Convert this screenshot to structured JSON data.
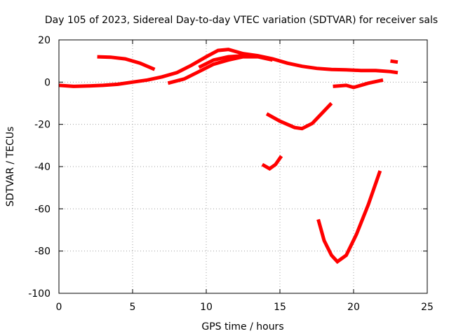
{
  "chart_data": {
    "type": "scatter",
    "title": "Day 105 of 2023, Sidereal Day-to-day VTEC variation (SDTVAR) for receiver sals",
    "xlabel": "GPS time / hours",
    "ylabel": "SDTVAR / TECUs",
    "xlim": [
      0,
      25
    ],
    "ylim": [
      -100,
      20
    ],
    "xticks": [
      "0",
      "5",
      "10",
      "15",
      "20",
      "25"
    ],
    "yticks": [
      "20",
      "0",
      "-20",
      "-40",
      "-60",
      "-80",
      "-100"
    ],
    "grid": true,
    "series": [
      {
        "points": [
          [
            0,
            -1.5
          ],
          [
            1,
            -2
          ],
          [
            2,
            -1.8
          ],
          [
            3,
            -1.5
          ],
          [
            4,
            -1
          ],
          [
            5,
            0
          ],
          [
            6,
            1
          ],
          [
            7,
            2.5
          ],
          [
            8,
            4.5
          ],
          [
            9,
            8
          ],
          [
            10,
            12
          ],
          [
            10.8,
            15
          ],
          [
            11.5,
            15.5
          ],
          [
            12.5,
            13.5
          ],
          [
            13.5,
            12.5
          ],
          [
            14.5,
            11
          ],
          [
            15.5,
            9
          ],
          [
            16.5,
            7.5
          ],
          [
            17.5,
            6.5
          ],
          [
            18.5,
            6
          ],
          [
            19.5,
            5.8
          ],
          [
            20.5,
            5.5
          ],
          [
            21.5,
            5.5
          ],
          [
            22.5,
            5
          ],
          [
            23,
            4.5
          ]
        ]
      },
      {
        "points": [
          [
            2.6,
            12
          ],
          [
            3.5,
            11.8
          ],
          [
            4.5,
            11
          ],
          [
            5.5,
            9
          ],
          [
            6.5,
            6
          ]
        ]
      },
      {
        "points": [
          [
            7.4,
            -0.5
          ],
          [
            8.5,
            1.5
          ],
          [
            9.5,
            5
          ],
          [
            10.5,
            8.5
          ],
          [
            11.5,
            10.5
          ],
          [
            12.5,
            12
          ],
          [
            13.5,
            12
          ],
          [
            14.5,
            10.5
          ]
        ]
      },
      {
        "points": [
          [
            9.5,
            7
          ],
          [
            10.5,
            10.5
          ],
          [
            11.5,
            12
          ],
          [
            12.5,
            12.5
          ],
          [
            13.5,
            12.5
          ]
        ]
      },
      {
        "points": [
          [
            18.6,
            -2
          ],
          [
            19.5,
            -1.5
          ],
          [
            20,
            -2.5
          ],
          [
            21,
            -0.5
          ],
          [
            22,
            1
          ]
        ]
      },
      {
        "points": [
          [
            22.5,
            10
          ],
          [
            23,
            9.5
          ]
        ]
      },
      {
        "points": [
          [
            14.1,
            -15
          ],
          [
            15,
            -18.5
          ],
          [
            16,
            -21.5
          ],
          [
            16.5,
            -22
          ],
          [
            17.2,
            -19.5
          ],
          [
            18.5,
            -10
          ]
        ]
      },
      {
        "points": [
          [
            13.8,
            -39
          ],
          [
            14.3,
            -41
          ],
          [
            14.7,
            -39
          ],
          [
            15.1,
            -35
          ]
        ]
      },
      {
        "points": [
          [
            17.6,
            -65
          ],
          [
            18,
            -75
          ],
          [
            18.5,
            -82
          ],
          [
            18.9,
            -85
          ],
          [
            19.5,
            -82
          ],
          [
            20.2,
            -72
          ],
          [
            21,
            -58
          ],
          [
            21.8,
            -42
          ]
        ]
      }
    ]
  }
}
